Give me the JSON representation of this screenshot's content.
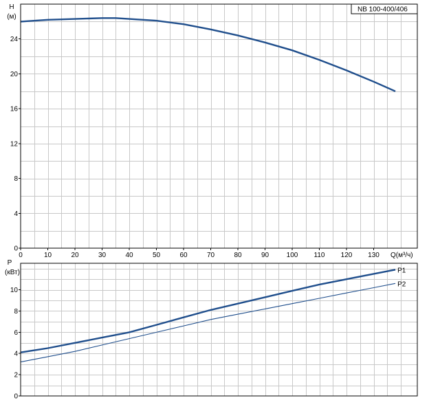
{
  "chart_data": [
    {
      "type": "line",
      "panel": "head",
      "title": "NB 100-400/406",
      "ylabel_symbol": "H",
      "ylabel_unit": "(м)",
      "xlabel": "Q(м³/ч)",
      "xlim": [
        0,
        145
      ],
      "ylim": [
        0,
        28
      ],
      "x_ticks": [
        0,
        10,
        20,
        30,
        40,
        50,
        60,
        70,
        80,
        90,
        100,
        110,
        120,
        130
      ],
      "y_ticks": [
        0,
        4,
        8,
        12,
        16,
        20,
        24
      ],
      "grid": true,
      "series": [
        {
          "x": [
            0,
            10,
            20,
            30,
            35,
            40,
            50,
            60,
            70,
            80,
            90,
            100,
            110,
            120,
            130,
            138
          ],
          "y": [
            26.0,
            26.2,
            26.3,
            26.4,
            26.4,
            26.3,
            26.1,
            25.7,
            25.1,
            24.4,
            23.6,
            22.7,
            21.6,
            20.4,
            19.1,
            18.0
          ]
        }
      ]
    },
    {
      "type": "line",
      "panel": "power",
      "ylabel_symbol": "P",
      "ylabel_unit": "(кВт)",
      "xlim": [
        0,
        145
      ],
      "ylim": [
        0,
        12.5
      ],
      "y_ticks": [
        0,
        2,
        4,
        6,
        8,
        10
      ],
      "grid": true,
      "series": [
        {
          "name": "P1",
          "x": [
            0,
            10,
            20,
            30,
            40,
            50,
            60,
            70,
            80,
            90,
            100,
            110,
            120,
            130,
            138
          ],
          "y": [
            4.1,
            4.5,
            5.0,
            5.5,
            6.0,
            6.7,
            7.4,
            8.1,
            8.7,
            9.3,
            9.9,
            10.5,
            11.0,
            11.5,
            11.9
          ]
        },
        {
          "name": "P2",
          "x": [
            0,
            10,
            20,
            30,
            40,
            50,
            60,
            70,
            80,
            90,
            100,
            110,
            120,
            130,
            138
          ],
          "y": [
            3.2,
            3.7,
            4.2,
            4.8,
            5.4,
            6.0,
            6.6,
            7.2,
            7.7,
            8.2,
            8.7,
            9.2,
            9.7,
            10.2,
            10.6
          ]
        }
      ]
    }
  ]
}
